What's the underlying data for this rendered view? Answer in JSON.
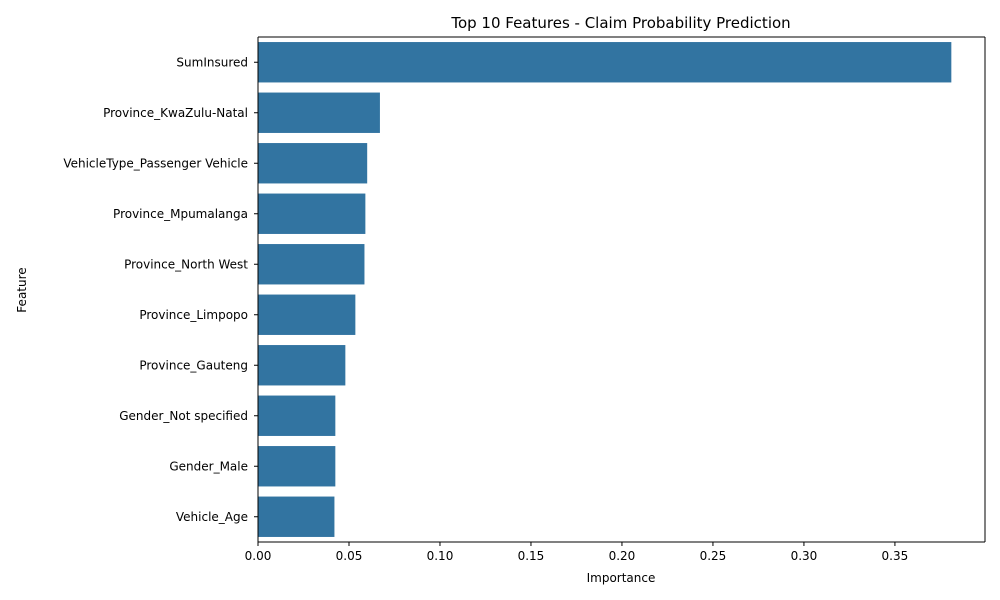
{
  "chart_data": {
    "type": "bar",
    "orientation": "horizontal",
    "title": "Top 10 Features - Claim Probability Prediction",
    "xlabel": "Importance",
    "ylabel": "Feature",
    "categories": [
      "SumInsured",
      "Province_KwaZulu-Natal",
      "VehicleType_Passenger Vehicle",
      "Province_Mpumalanga",
      "Province_North West",
      "Province_Limpopo",
      "Province_Gauteng",
      "Gender_Not specified",
      "Gender_Male",
      "Vehicle_Age"
    ],
    "values": [
      0.381,
      0.067,
      0.06,
      0.059,
      0.0585,
      0.0535,
      0.048,
      0.0425,
      0.0425,
      0.042
    ],
    "xlim": [
      0,
      0.3995
    ],
    "xticks": [
      "0.00",
      "0.05",
      "0.10",
      "0.15",
      "0.20",
      "0.25",
      "0.30",
      "0.35"
    ],
    "grid": false,
    "bar_color": "#3274a1"
  }
}
